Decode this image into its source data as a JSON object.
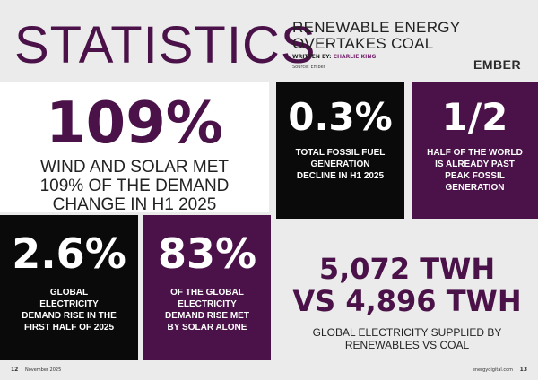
{
  "header": {
    "title": "STATISTICS",
    "headline_line1": "RENEWABLE ENERGY",
    "headline_line2": "OVERTAKES COAL",
    "byline_prefix": "WRITTEN BY: ",
    "byline_author": "CHARLIE KING",
    "source": "Source: Ember",
    "logo": "EMBER"
  },
  "stats": [
    {
      "value": "109%",
      "description": "WIND AND SOLAR MET 109% OF THE DEMAND CHANGE IN H1 2025"
    },
    {
      "value": "0.3%",
      "description": "TOTAL FOSSIL FUEL GENERATION DECLINE IN H1 2025"
    },
    {
      "value": "1/2",
      "description": "HALF OF THE WORLD IS ALREADY PAST PEAK FOSSIL GENERATION"
    },
    {
      "value": "2.6%",
      "description": "GLOBAL ELECTRICITY DEMAND RISE IN THE FIRST HALF OF 2025"
    },
    {
      "value": "83%",
      "description": "OF THE GLOBAL ELECTRICITY DEMAND RISE MET BY SOLAR ALONE"
    },
    {
      "value_line1": "5,072 TWH",
      "value_line2": "VS 4,896 TWH",
      "description": "GLOBAL ELECTRICITY SUPPLIED BY RENEWABLES VS COAL"
    }
  ],
  "footer": {
    "left_page": "12",
    "left_text": "November 2025",
    "right_text": "energydigital.com",
    "right_page": "13"
  },
  "colors": {
    "purple": "#4a1248",
    "black": "#0a0a0a",
    "grey": "#ebebeb",
    "white": "#ffffff"
  }
}
